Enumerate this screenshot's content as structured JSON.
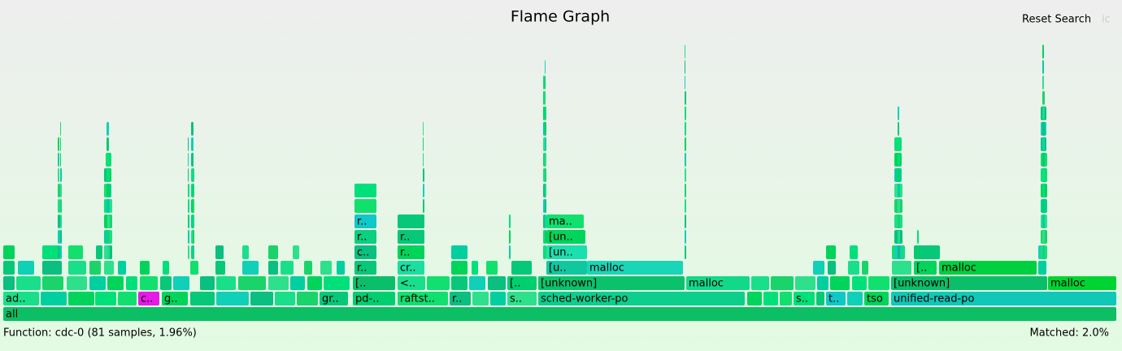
{
  "title": "Flame Graph",
  "controls": {
    "reset_search": "Reset Search",
    "ic": "ic"
  },
  "frames": [
    {
      "label": "all"
    },
    {
      "label": "ad.."
    },
    {
      "label": "c.."
    },
    {
      "label": "g.."
    },
    {
      "label": "gr.."
    },
    {
      "label": "pd-.."
    },
    {
      "label": "raftst.."
    },
    {
      "label": "r.."
    },
    {
      "label": "s.."
    },
    {
      "label": "sched-worker-po"
    },
    {
      "label": "s.."
    },
    {
      "label": "t.."
    },
    {
      "label": "tso"
    },
    {
      "label": "unified-read-po"
    },
    {
      "label": "[.."
    },
    {
      "label": "<.."
    },
    {
      "label": "[.."
    },
    {
      "label": "[unknown]"
    },
    {
      "label": "malloc"
    },
    {
      "label": "[unknown]"
    },
    {
      "label": "malloc"
    },
    {
      "label": "r.."
    },
    {
      "label": "cr.."
    },
    {
      "label": "[u.."
    },
    {
      "label": "malloc"
    },
    {
      "label": "[.."
    },
    {
      "label": "malloc"
    },
    {
      "label": "c.."
    },
    {
      "label": "r.."
    },
    {
      "label": "[un.."
    },
    {
      "label": "r.."
    },
    {
      "label": "r.."
    },
    {
      "label": "[un.."
    },
    {
      "label": "r.."
    },
    {
      "label": "ma.."
    }
  ],
  "status": {
    "function": "Function: cdc-0 (81 samples, 1.96%)",
    "matched": "Matched: 2.0%"
  }
}
